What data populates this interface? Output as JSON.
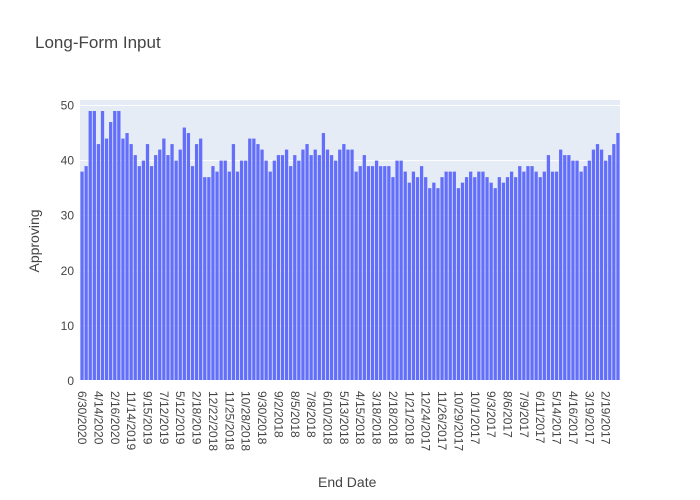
{
  "chart_data": {
    "type": "bar",
    "title": "Long-Form Input",
    "xlabel": "End Date",
    "ylabel": "Approving",
    "ylim": [
      0,
      51
    ],
    "yticks": [
      0,
      10,
      20,
      30,
      40,
      50
    ],
    "grid": true,
    "colors": {
      "bar": "#636efa",
      "plot_bg": "#e5ecf6",
      "grid": "#ffffff",
      "text": "#444444"
    },
    "x_tick_labels": [
      "6/30/2020",
      "4/14/2020",
      "2/16/2020",
      "11/14/2019",
      "9/15/2019",
      "7/12/2019",
      "5/12/2019",
      "2/18/2019",
      "12/22/2018",
      "11/25/2018",
      "10/28/2018",
      "9/30/2018",
      "9/2/2018",
      "8/5/2018",
      "7/8/2018",
      "6/10/2018",
      "5/13/2018",
      "4/15/2018",
      "3/18/2018",
      "2/18/2018",
      "1/21/2018",
      "12/24/2017",
      "11/26/2017",
      "10/29/2017",
      "10/1/2017",
      "9/3/2017",
      "8/6/2017",
      "7/9/2017",
      "6/11/2017",
      "5/14/2017",
      "4/16/2017",
      "3/19/2017",
      "2/19/2017"
    ],
    "values": [
      38,
      39,
      49,
      49,
      43,
      49,
      44,
      47,
      49,
      49,
      44,
      45,
      43,
      41,
      39,
      40,
      43,
      39,
      41,
      42,
      44,
      41,
      43,
      40,
      42,
      46,
      45,
      39,
      43,
      44,
      37,
      37,
      39,
      38,
      40,
      40,
      38,
      43,
      38,
      40,
      40,
      44,
      44,
      43,
      42,
      40,
      38,
      40,
      41,
      41,
      42,
      39,
      41,
      40,
      42,
      43,
      41,
      42,
      41,
      45,
      42,
      41,
      40,
      42,
      43,
      42,
      42,
      38,
      39,
      41,
      39,
      39,
      40,
      39,
      39,
      39,
      37,
      40,
      40,
      38,
      36,
      38,
      37,
      39,
      37,
      35,
      36,
      35,
      37,
      38,
      38,
      38,
      35,
      36,
      37,
      38,
      37,
      38,
      38,
      37,
      36,
      35,
      37,
      36,
      37,
      38,
      37,
      39,
      38,
      39,
      39,
      38,
      37,
      38,
      41,
      38,
      38,
      42,
      41,
      41,
      40,
      40,
      38,
      39,
      40,
      42,
      43,
      42,
      40,
      41,
      43,
      45
    ]
  }
}
